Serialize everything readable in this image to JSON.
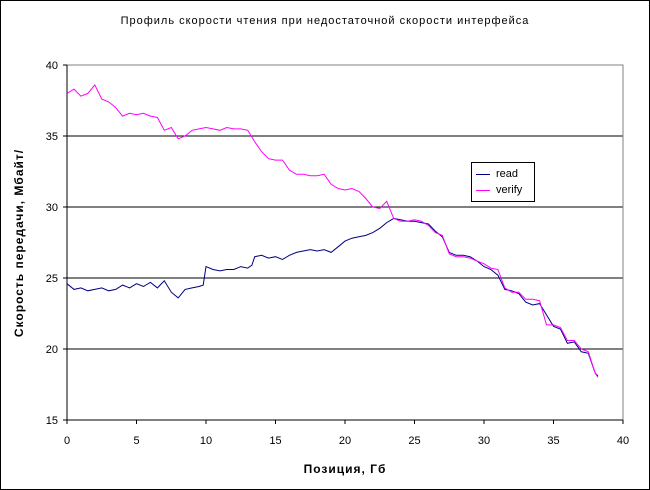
{
  "chart_data": {
    "type": "line",
    "title": "Профиль скорости чтения при недостаточной скорости интерфейса",
    "xlabel": "Позиция, Гб",
    "ylabel": "Скорость передачи, Мбайт/",
    "xlim": [
      0,
      40
    ],
    "ylim": [
      15,
      40
    ],
    "xticks": [
      "0",
      "5",
      "10",
      "15",
      "20",
      "25",
      "30",
      "35",
      "40"
    ],
    "yticks": [
      "15",
      "20",
      "25",
      "30",
      "35",
      "40"
    ],
    "grid": "horizontal",
    "legend_position": "right",
    "series": [
      {
        "name": "read",
        "color": "#000080",
        "points": [
          [
            0,
            24.6
          ],
          [
            0.5,
            24.2
          ],
          [
            1,
            24.3
          ],
          [
            1.5,
            24.1
          ],
          [
            2,
            24.2
          ],
          [
            2.5,
            24.3
          ],
          [
            3,
            24.1
          ],
          [
            3.5,
            24.2
          ],
          [
            4,
            24.5
          ],
          [
            4.5,
            24.3
          ],
          [
            5,
            24.6
          ],
          [
            5.5,
            24.4
          ],
          [
            6,
            24.7
          ],
          [
            6.5,
            24.3
          ],
          [
            7,
            24.8
          ],
          [
            7.5,
            24.0
          ],
          [
            8,
            23.6
          ],
          [
            8.5,
            24.2
          ],
          [
            9,
            24.3
          ],
          [
            9.5,
            24.4
          ],
          [
            9.8,
            24.5
          ],
          [
            10,
            25.8
          ],
          [
            10.5,
            25.6
          ],
          [
            11,
            25.5
          ],
          [
            11.5,
            25.6
          ],
          [
            12,
            25.6
          ],
          [
            12.5,
            25.8
          ],
          [
            13,
            25.7
          ],
          [
            13.3,
            25.9
          ],
          [
            13.5,
            26.5
          ],
          [
            14,
            26.6
          ],
          [
            14.5,
            26.4
          ],
          [
            15,
            26.5
          ],
          [
            15.5,
            26.3
          ],
          [
            16,
            26.6
          ],
          [
            16.5,
            26.8
          ],
          [
            17,
            26.9
          ],
          [
            17.5,
            27.0
          ],
          [
            18,
            26.9
          ],
          [
            18.5,
            27.0
          ],
          [
            19,
            26.8
          ],
          [
            19.5,
            27.2
          ],
          [
            20,
            27.6
          ],
          [
            20.5,
            27.8
          ],
          [
            21,
            27.9
          ],
          [
            21.5,
            28.0
          ],
          [
            22,
            28.2
          ],
          [
            22.5,
            28.5
          ],
          [
            23,
            28.9
          ],
          [
            23.5,
            29.2
          ],
          [
            24,
            29.1
          ],
          [
            24.5,
            29.0
          ],
          [
            25,
            29.0
          ],
          [
            25.5,
            28.9
          ],
          [
            26,
            28.8
          ],
          [
            26.5,
            28.3
          ],
          [
            27,
            27.9
          ],
          [
            27.5,
            26.8
          ],
          [
            28,
            26.6
          ],
          [
            28.5,
            26.6
          ],
          [
            29,
            26.5
          ],
          [
            29.5,
            26.2
          ],
          [
            30,
            25.8
          ],
          [
            30.5,
            25.6
          ],
          [
            31,
            25.2
          ],
          [
            31.5,
            24.2
          ],
          [
            32,
            24.1
          ],
          [
            32.5,
            23.9
          ],
          [
            33,
            23.3
          ],
          [
            33.5,
            23.1
          ],
          [
            34,
            23.2
          ],
          [
            34.5,
            22.4
          ],
          [
            35,
            21.6
          ],
          [
            35.5,
            21.4
          ],
          [
            36,
            20.4
          ],
          [
            36.5,
            20.5
          ],
          [
            37,
            19.8
          ],
          [
            37.5,
            19.7
          ],
          [
            38,
            18.3
          ],
          [
            38.2,
            18.1
          ]
        ]
      },
      {
        "name": "verify",
        "color": "#ff00ff",
        "points": [
          [
            0,
            38.0
          ],
          [
            0.5,
            38.3
          ],
          [
            1,
            37.8
          ],
          [
            1.5,
            38.0
          ],
          [
            2,
            38.6
          ],
          [
            2.5,
            37.6
          ],
          [
            3,
            37.4
          ],
          [
            3.5,
            37.0
          ],
          [
            4,
            36.4
          ],
          [
            4.5,
            36.6
          ],
          [
            5,
            36.5
          ],
          [
            5.5,
            36.6
          ],
          [
            6,
            36.4
          ],
          [
            6.5,
            36.3
          ],
          [
            7,
            35.4
          ],
          [
            7.5,
            35.6
          ],
          [
            8,
            34.8
          ],
          [
            8.5,
            35.0
          ],
          [
            9,
            35.4
          ],
          [
            9.5,
            35.5
          ],
          [
            10,
            35.6
          ],
          [
            10.5,
            35.5
          ],
          [
            11,
            35.4
          ],
          [
            11.5,
            35.6
          ],
          [
            12,
            35.5
          ],
          [
            12.5,
            35.5
          ],
          [
            13,
            35.4
          ],
          [
            13.5,
            34.6
          ],
          [
            14,
            33.9
          ],
          [
            14.5,
            33.4
          ],
          [
            15,
            33.3
          ],
          [
            15.5,
            33.3
          ],
          [
            16,
            32.6
          ],
          [
            16.5,
            32.3
          ],
          [
            17,
            32.3
          ],
          [
            17.5,
            32.2
          ],
          [
            18,
            32.2
          ],
          [
            18.5,
            32.3
          ],
          [
            19,
            31.6
          ],
          [
            19.5,
            31.3
          ],
          [
            20,
            31.2
          ],
          [
            20.5,
            31.3
          ],
          [
            21,
            31.1
          ],
          [
            21.5,
            30.6
          ],
          [
            22,
            30.0
          ],
          [
            22.5,
            29.9
          ],
          [
            23,
            30.4
          ],
          [
            23.5,
            29.2
          ],
          [
            24,
            29.0
          ],
          [
            24.5,
            29.0
          ],
          [
            25,
            29.1
          ],
          [
            25.5,
            29.0
          ],
          [
            26,
            28.7
          ],
          [
            26.5,
            28.2
          ],
          [
            27,
            28.0
          ],
          [
            27.5,
            26.7
          ],
          [
            28,
            26.5
          ],
          [
            28.5,
            26.5
          ],
          [
            29,
            26.4
          ],
          [
            29.5,
            26.2
          ],
          [
            30,
            26.0
          ],
          [
            30.5,
            25.7
          ],
          [
            31,
            25.6
          ],
          [
            31.5,
            24.3
          ],
          [
            32,
            24.0
          ],
          [
            32.5,
            24.0
          ],
          [
            33,
            23.5
          ],
          [
            33.5,
            23.5
          ],
          [
            34,
            23.4
          ],
          [
            34.5,
            21.7
          ],
          [
            35,
            21.7
          ],
          [
            35.5,
            21.5
          ],
          [
            36,
            20.6
          ],
          [
            36.5,
            20.6
          ],
          [
            37,
            20.0
          ],
          [
            37.5,
            19.8
          ],
          [
            38,
            18.3
          ],
          [
            38.2,
            18.0
          ]
        ]
      }
    ]
  }
}
